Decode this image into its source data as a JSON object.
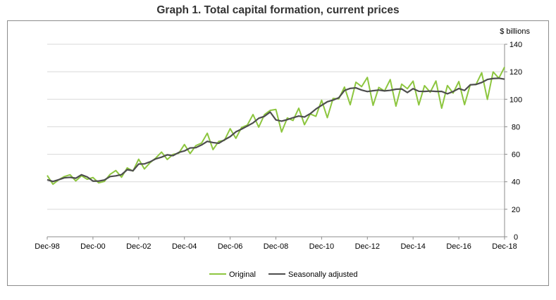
{
  "chart_data": {
    "type": "line",
    "title": "Graph 1. Total capital formation, current prices",
    "ylabel": "$ billions",
    "xlabel": "",
    "ylim": [
      0,
      140
    ],
    "yticks": [
      0,
      20,
      40,
      60,
      80,
      100,
      120,
      140
    ],
    "x_start": "Dec-98",
    "x_end": "Dec-18",
    "x_frequency": "quarterly",
    "xtick_labels": [
      "Dec-98",
      "Dec-00",
      "Dec-02",
      "Dec-04",
      "Dec-06",
      "Dec-08",
      "Dec-10",
      "Dec-12",
      "Dec-14",
      "Dec-16",
      "Dec-18"
    ],
    "grid": "horizontal",
    "legend_position": "bottom",
    "series": [
      {
        "name": "Original",
        "color": "#8dc63f",
        "values": [
          44.6,
          38.2,
          41.4,
          43.8,
          45.1,
          40.6,
          44.4,
          41.8,
          43.1,
          39.2,
          40.3,
          45.4,
          48.2,
          43.3,
          50.1,
          47.8,
          56.4,
          49.3,
          53.9,
          57.3,
          61.6,
          56.2,
          59.9,
          60.7,
          67.1,
          60.5,
          66.3,
          68.1,
          75.3,
          63.4,
          69.4,
          70.1,
          78.6,
          71.6,
          79.5,
          81.2,
          88.9,
          79.7,
          88.8,
          91.9,
          92.6,
          76.2,
          86.4,
          84.6,
          93.5,
          81.5,
          89.3,
          87.6,
          99.3,
          86.6,
          100.6,
          100.3,
          108.9,
          96.0,
          112.4,
          109.2,
          115.9,
          95.6,
          108.6,
          106.0,
          114.3,
          95.0,
          111.0,
          107.7,
          113.2,
          95.9,
          109.9,
          105.1,
          113.3,
          93.5,
          110.0,
          104.5,
          112.9,
          96.1,
          110.6,
          110.7,
          119.3,
          99.9,
          119.9,
          115.3,
          123.4
        ]
      },
      {
        "name": "Seasonally adjusted",
        "color": "#4d4d4d",
        "values": [
          41.5,
          40.2,
          41.5,
          42.9,
          43.2,
          42.6,
          45.1,
          43.5,
          40.5,
          40.5,
          41.3,
          43.8,
          44.3,
          45.2,
          48.8,
          48.0,
          52.9,
          53.0,
          54.5,
          56.7,
          57.9,
          59.6,
          59.0,
          61.3,
          62.4,
          64.6,
          64.8,
          66.8,
          69.4,
          68.5,
          68.0,
          70.5,
          72.8,
          76.3,
          78.3,
          80.5,
          82.8,
          86.2,
          87.6,
          90.7,
          85.0,
          84.1,
          85.2,
          86.6,
          87.8,
          87.1,
          89.5,
          92.9,
          95.6,
          98.2,
          99.4,
          101.1,
          106.4,
          107.9,
          108.3,
          106.7,
          105.6,
          106.2,
          106.7,
          106.1,
          106.5,
          107.3,
          107.5,
          104.9,
          107.7,
          105.8,
          105.7,
          106.0,
          105.7,
          105.7,
          104.0,
          105.6,
          107.8,
          106.4,
          110.5,
          110.8,
          112.2,
          114.4,
          115.1,
          115.3,
          114.6
        ]
      }
    ]
  }
}
